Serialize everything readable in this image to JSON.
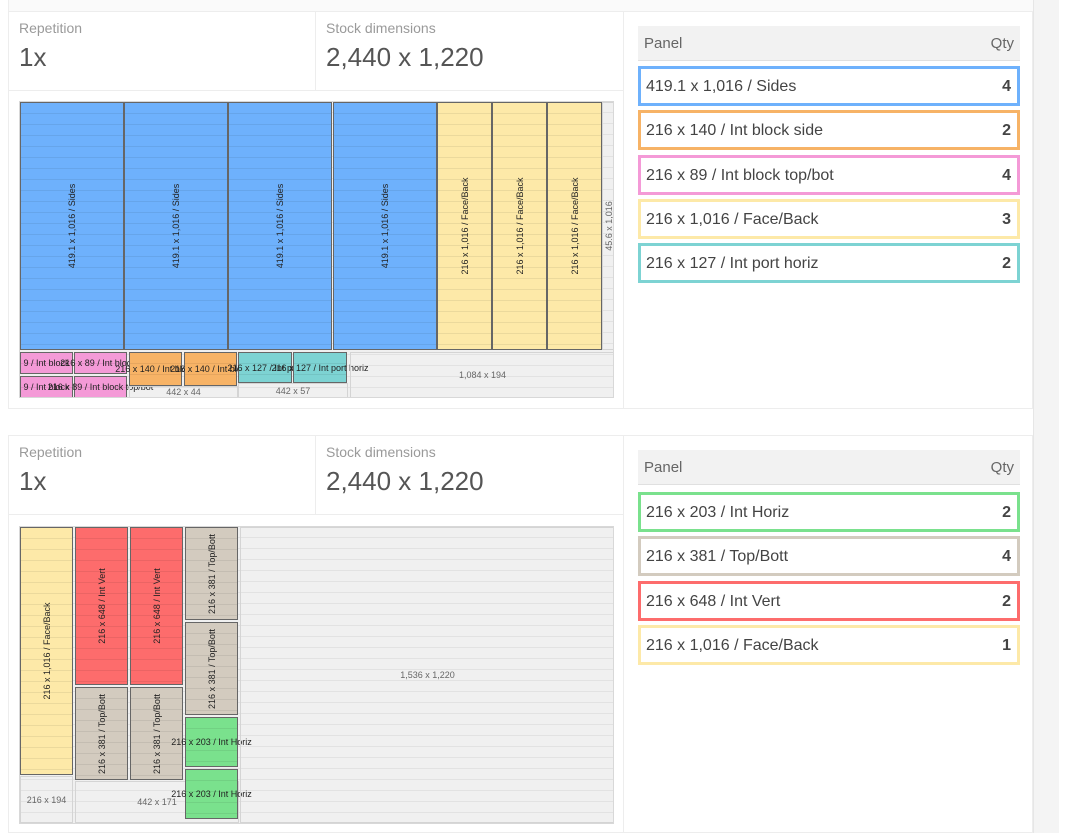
{
  "layouts": [
    {
      "repetition_label": "Repetition",
      "repetition_value": "1x",
      "stock_label": "Stock dimensions",
      "stock_value": "2,440 x 1,220",
      "panel_header": "Panel",
      "qty_header": "Qty",
      "panels": [
        {
          "label": "419.1 x 1,016 / Sides",
          "qty": "4",
          "color": "#6eb1fc"
        },
        {
          "label": "216 x 140 / Int block side",
          "qty": "2",
          "color": "#f7b366"
        },
        {
          "label": "216 x 89 / Int block top/bot",
          "qty": "4",
          "color": "#f49ad7"
        },
        {
          "label": "216 x 1,016 / Face/Back",
          "qty": "3",
          "color": "#fde9a8"
        },
        {
          "label": "216 x 127 / Int port horiz",
          "qty": "2",
          "color": "#7dd3d3"
        }
      ],
      "pieces": {
        "sides": "419.1 x 1,016 / Sides",
        "faceback": "216 x 1,016 / Face/Back",
        "intblock_top_a": "9 / Int block",
        "intblock_top_b": "216 x 89 / Int block t",
        "intblock_bot_a": "9 / Int block",
        "intblock_bot_b": "216 x 89 / Int block top/bot",
        "intblock_side_a": "216 x 140 / Int block",
        "intblock_side_b": "216 x 140 / Int block",
        "port_a": "216 x 127 / Int port",
        "port_b": "216 x 127 / Int port horiz"
      },
      "waste": {
        "right_strip": "45.6 x 1,016",
        "bottom_right": "1,084 x 194",
        "block_remainder": "442 x 44",
        "port_remainder": "442 x 57"
      }
    },
    {
      "repetition_label": "Repetition",
      "repetition_value": "1x",
      "stock_label": "Stock dimensions",
      "stock_value": "2,440 x 1,220",
      "panel_header": "Panel",
      "qty_header": "Qty",
      "panels": [
        {
          "label": "216 x 203 / Int Horiz",
          "qty": "2",
          "color": "#7ae18d"
        },
        {
          "label": "216 x 381 / Top/Bott",
          "qty": "4",
          "color": "#d3cbbf"
        },
        {
          "label": "216 x 648 / Int Vert",
          "qty": "2",
          "color": "#fd6c6c"
        },
        {
          "label": "216 x 1,016 / Face/Back",
          "qty": "1",
          "color": "#fde9a8"
        }
      ],
      "pieces": {
        "faceback": "216 x 1,016 / Face/Back",
        "intvert": "216 x 648 / Int Vert",
        "topbott": "216 x 381 / Top/Bott",
        "inthoriz": "216 x 203 / Int Horiz"
      },
      "waste": {
        "big_remainder": "1,536 x 1,220",
        "face_remainder": "216 x 194",
        "middle_remainder": "442 x 171"
      }
    }
  ]
}
